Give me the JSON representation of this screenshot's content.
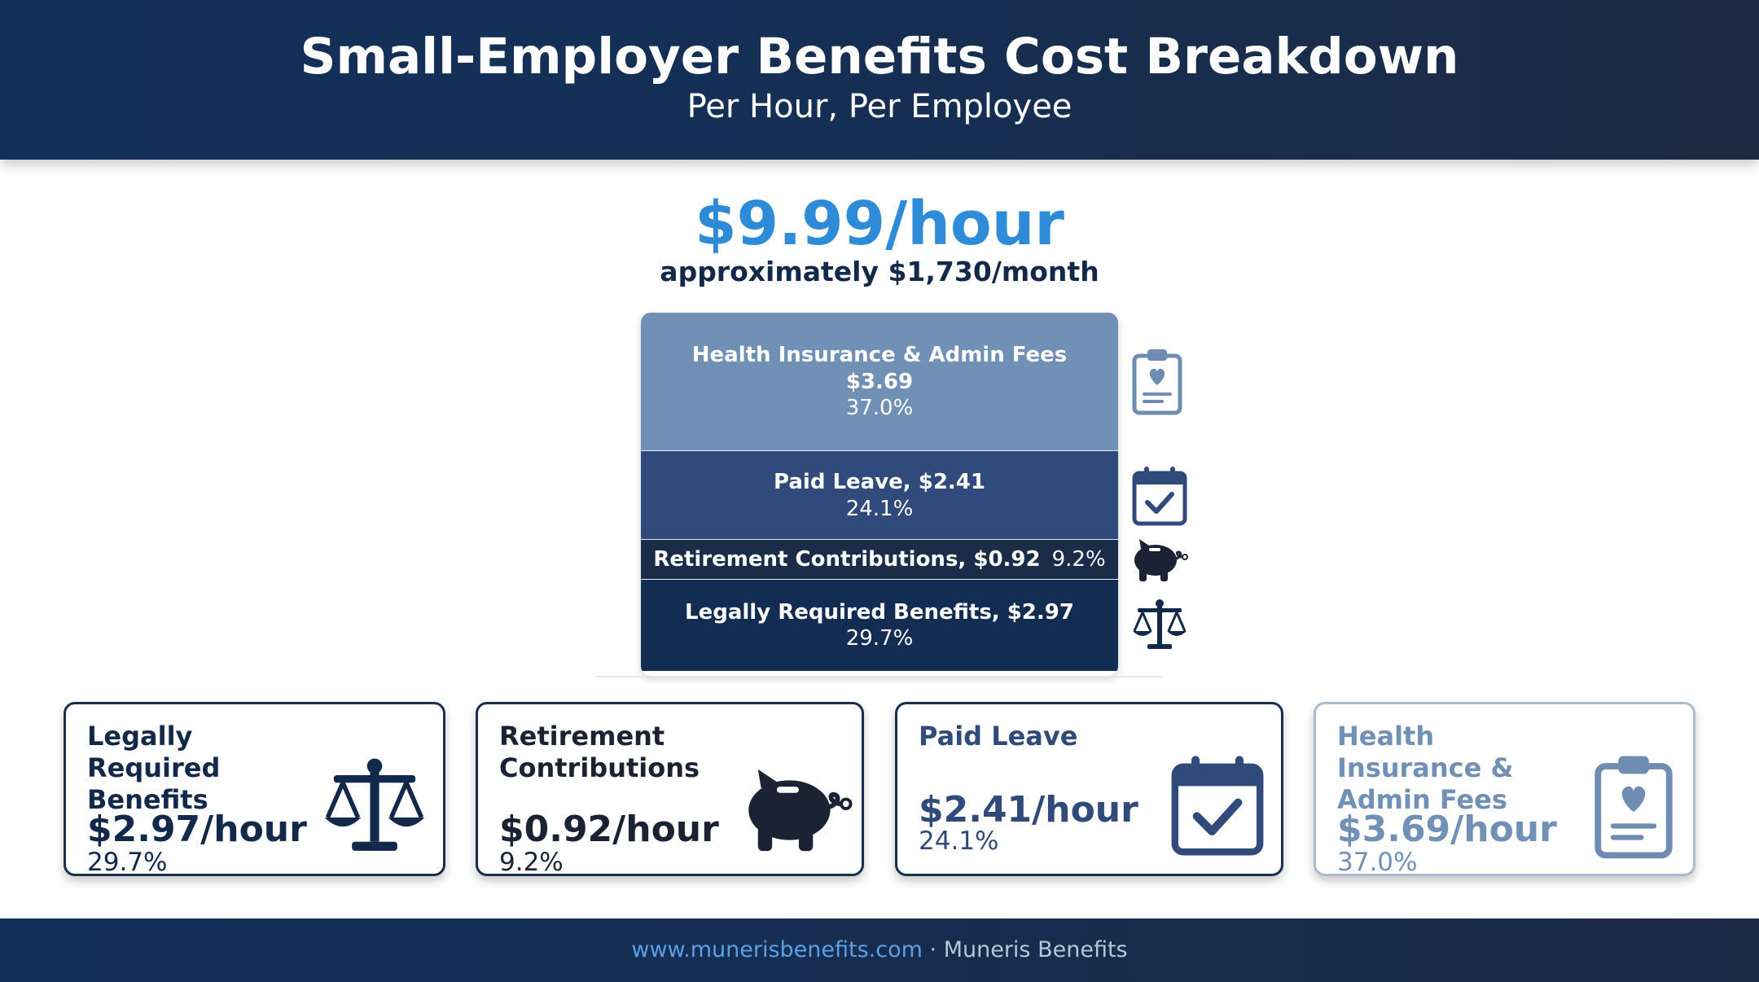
{
  "header": {
    "title": "Small-Employer Benefits Cost Breakdown",
    "subtitle": "Per Hour, Per Employee"
  },
  "total": {
    "value": "$9.99/hour",
    "monthly": "approximately $1,730/month"
  },
  "chart_data": {
    "type": "bar",
    "title": "Small-Employer Benefits Cost Breakdown",
    "subtitle": "Per Hour, Per Employee",
    "categories": [
      "Health Insurance & Admin Fees",
      "Paid Leave",
      "Retirement Contributions",
      "Legally Required Benefits"
    ],
    "series": [
      {
        "values": [
          3.69,
          2.41,
          0.92,
          2.97
        ]
      }
    ],
    "percents": [
      37.0,
      24.1,
      9.2,
      29.7
    ],
    "total": 9.99,
    "stacked": true,
    "segments": [
      {
        "label": "Health Insurance & Admin Fees",
        "value_label": "$3.69",
        "pct_label": "37.0%",
        "color": "#7190b5",
        "icon": "clipboard-heart-icon"
      },
      {
        "label": "Paid Leave, $2.41",
        "value_label": "",
        "pct_label": "24.1%",
        "color": "#2f4a7b",
        "icon": "calendar-check-icon"
      },
      {
        "label": "Retirement Contributions, $0.92",
        "value_label": "",
        "pct_label": "9.2%",
        "color": "#1b2c49",
        "icon": "piggy-bank-icon"
      },
      {
        "label": "Legally Required Benefits, $2.97",
        "value_label": "",
        "pct_label": "29.7%",
        "color": "#132c52",
        "icon": "scales-icon"
      }
    ]
  },
  "cards": [
    {
      "title": "Legally Required Benefits",
      "value": "$2.97/hour",
      "pct": "29.7%",
      "icon": "scales-icon",
      "color": "#13294b"
    },
    {
      "title": "Retirement Contributions",
      "value": "$0.92/hour",
      "pct": "9.2%",
      "icon": "piggy-bank-icon",
      "color": "#1a2233"
    },
    {
      "title": "Paid Leave",
      "value": "$2.41/hour",
      "pct": "24.1%",
      "icon": "calendar-check-icon",
      "color": "#2f4a7b"
    },
    {
      "title": "Health Insurance & Admin Fees",
      "value": "$3.69/hour",
      "pct": "37.0%",
      "icon": "clipboard-heart-icon",
      "color": "#7190b5"
    }
  ],
  "footer": {
    "link": "www.munerisbenefits.com",
    "separator": "·",
    "brand": "Muneris Benefits"
  }
}
